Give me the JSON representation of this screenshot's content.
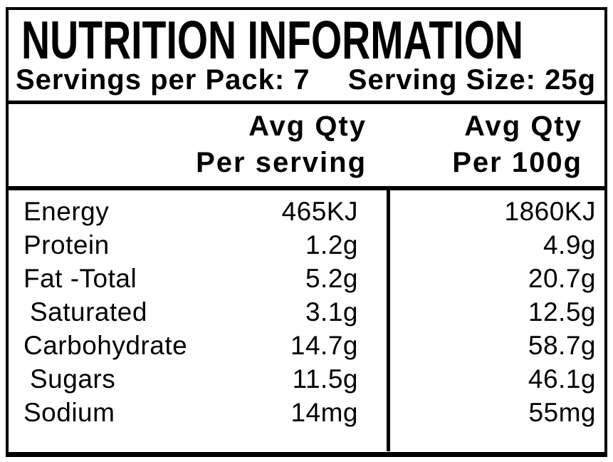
{
  "colors": {
    "background": "#ffffff",
    "text": "#000000",
    "border": "#000000"
  },
  "header": {
    "title": "NUTRITION INFORMATION",
    "servings_per_pack": "Servings per Pack: 7",
    "serving_size": "Serving Size: 25g"
  },
  "column_headers": {
    "per_serving": {
      "line1": "Avg Qty",
      "line2": "Per serving"
    },
    "per_100g": {
      "line1": "Avg Qty",
      "line2": "Per 100g"
    }
  },
  "rows": [
    {
      "nutrient": "Energy",
      "per_serving": "465KJ",
      "per_100g": "1860KJ",
      "indent": false
    },
    {
      "nutrient": "Protein",
      "per_serving": "1.2g",
      "per_100g": "4.9g",
      "indent": false
    },
    {
      "nutrient": "Fat -Total",
      "per_serving": "5.2g",
      "per_100g": "20.7g",
      "indent": false
    },
    {
      "nutrient": "Saturated",
      "per_serving": "3.1g",
      "per_100g": "12.5g",
      "indent": true
    },
    {
      "nutrient": "Carbohydrate",
      "per_serving": "14.7g",
      "per_100g": "58.7g",
      "indent": false
    },
    {
      "nutrient": "Sugars",
      "per_serving": "11.5g",
      "per_100g": "46.1g",
      "indent": true
    },
    {
      "nutrient": "Sodium",
      "per_serving": "14mg",
      "per_100g": "55mg",
      "indent": false
    }
  ]
}
